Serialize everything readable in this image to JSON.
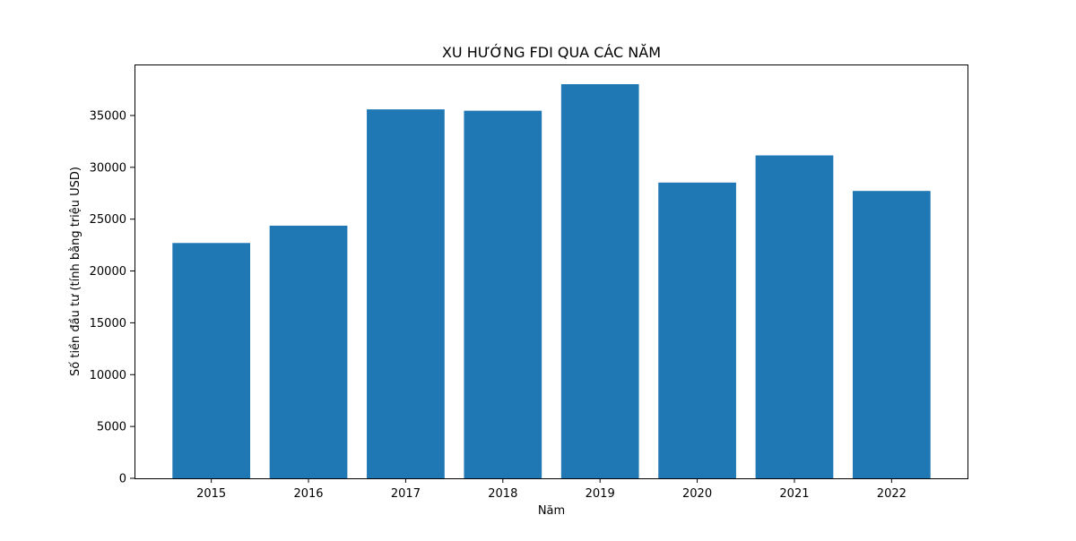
{
  "chart_data": {
    "type": "bar",
    "title": "XU HƯỚNG FDI QUA CÁC NĂM",
    "xlabel": "Năm",
    "ylabel": "Số tiền đầu tư (tính bằng triệu USD)",
    "categories": [
      "2015",
      "2016",
      "2017",
      "2018",
      "2019",
      "2020",
      "2021",
      "2022"
    ],
    "values": [
      22700,
      24370,
      35590,
      35460,
      38020,
      28530,
      31150,
      27720
    ],
    "ylim": [
      0,
      39920
    ],
    "yticks": [
      0,
      5000,
      10000,
      15000,
      20000,
      25000,
      30000,
      35000
    ],
    "ytick_labels": [
      "0",
      "5000",
      "10000",
      "15000",
      "20000",
      "25000",
      "30000",
      "35000"
    ],
    "bar_color": "#1f77b4",
    "grid": false,
    "legend": "none"
  }
}
